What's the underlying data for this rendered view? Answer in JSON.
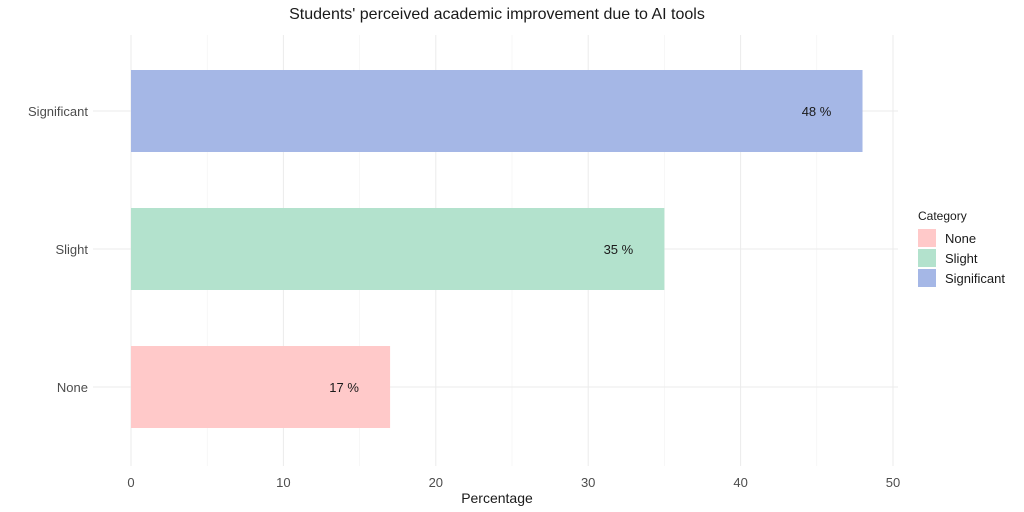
{
  "chart_data": {
    "type": "bar",
    "orientation": "horizontal",
    "title": "Students' perceived academic improvement due to AI tools",
    "xlabel": "Percentage",
    "ylabel": "",
    "categories": [
      "None",
      "Slight",
      "Significant"
    ],
    "values": [
      17,
      35,
      48
    ],
    "value_labels": [
      "17 %",
      "35 %",
      "48 %"
    ],
    "colors": [
      "#ffc9c9",
      "#b3e2cd",
      "#a5b7e6"
    ],
    "xlim": [
      0,
      50
    ],
    "x_ticks": [
      0,
      10,
      20,
      30,
      40,
      50
    ],
    "grid": true,
    "legend": {
      "title": "Category",
      "placement": "right",
      "entries": [
        "None",
        "Slight",
        "Significant"
      ]
    }
  }
}
